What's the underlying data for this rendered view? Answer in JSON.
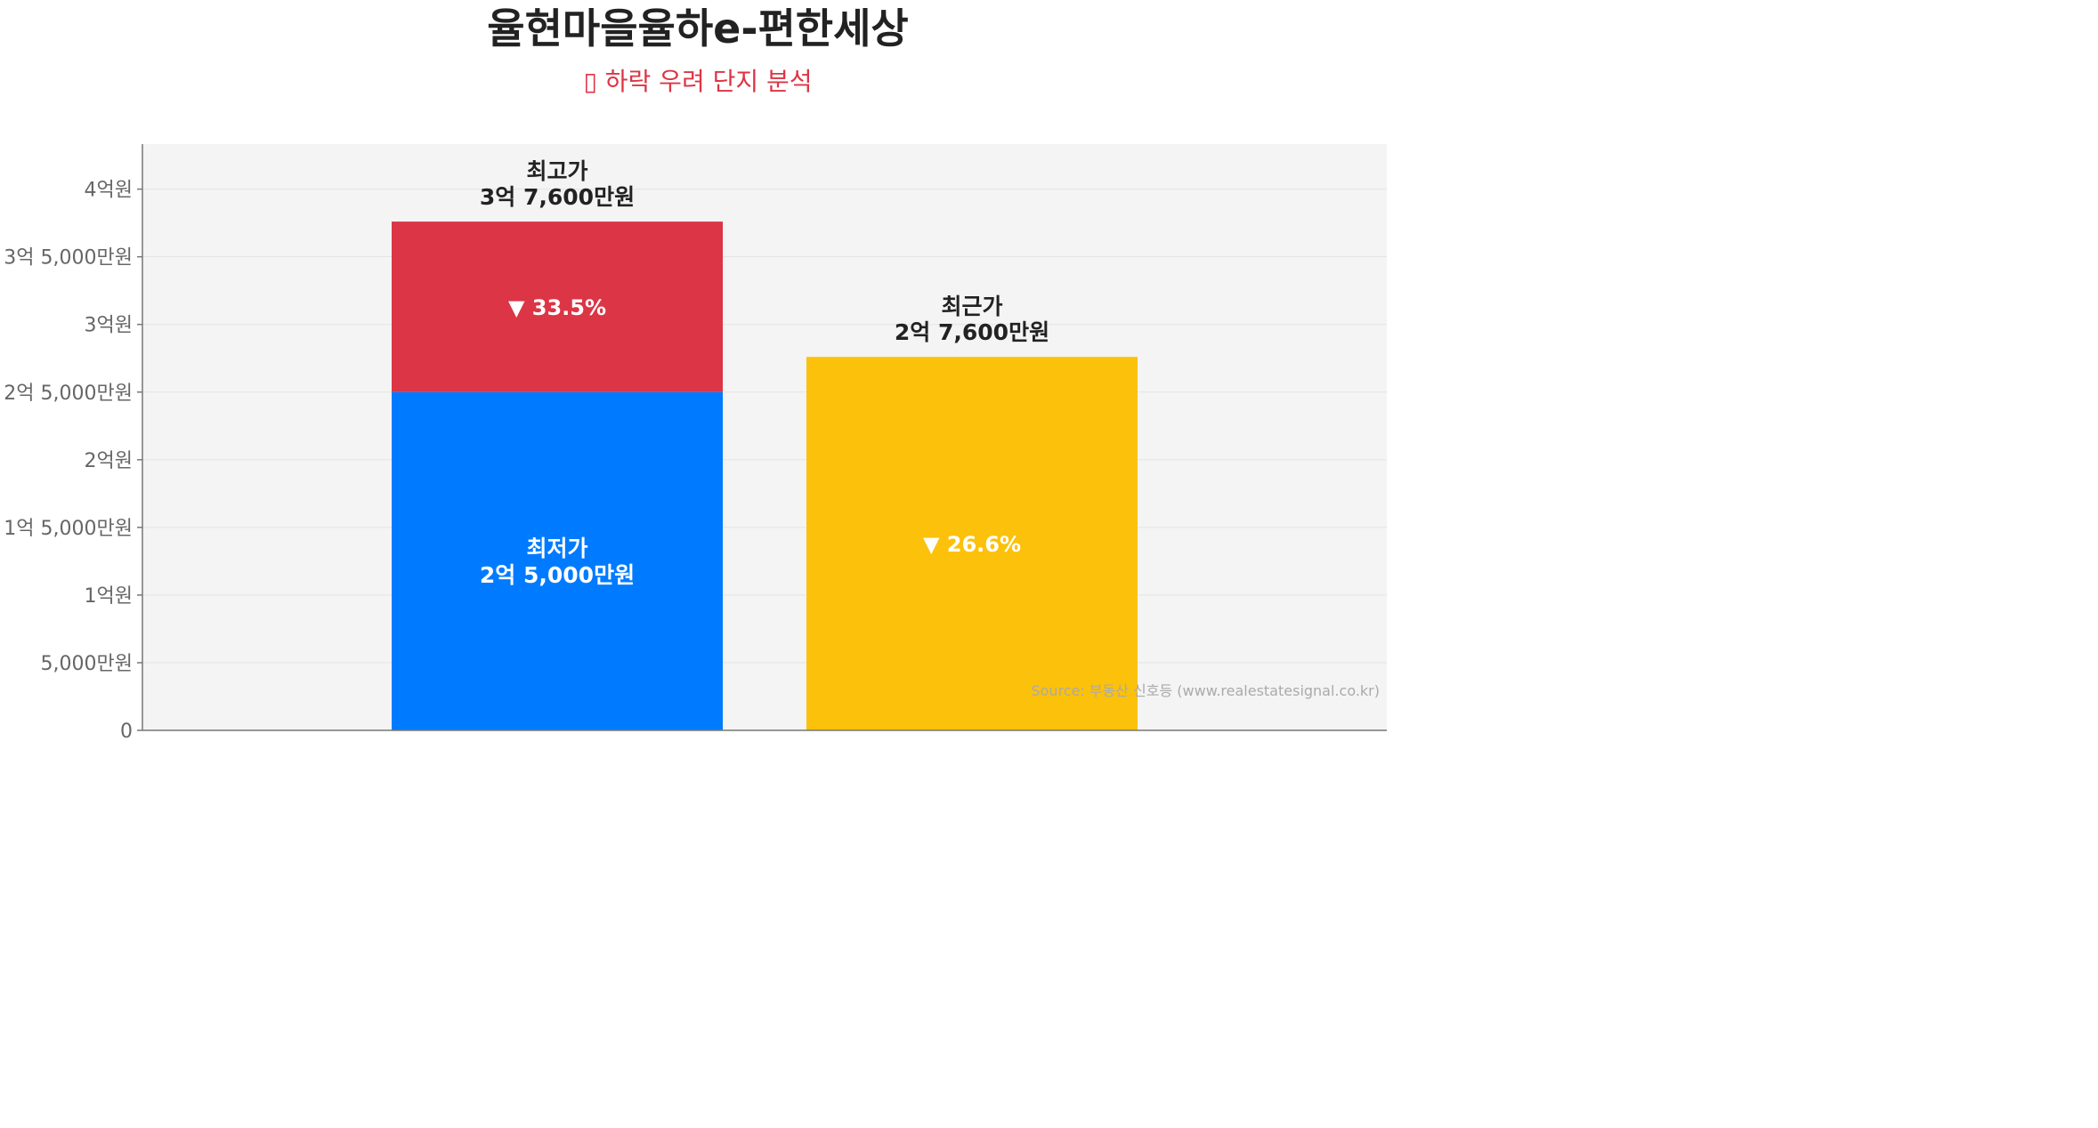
{
  "title": "율현마을율하e-편한세상",
  "subtitle": "▯ 하락 우려 단지 분석",
  "source": "Source: 부동산 신호등 (www.realestatesignal.co.kr)",
  "colors": {
    "plot_bg": "#f4f4f4",
    "high": "#dc3545",
    "low": "#007bff",
    "recent": "#fcc10a",
    "subtitle": "#dc3545"
  },
  "chart_data": {
    "type": "bar",
    "ylim": [
      0,
      43000
    ],
    "grid": true,
    "y_ticks": [
      {
        "value": 0,
        "label": "0"
      },
      {
        "value": 5000,
        "label": "5,000만원"
      },
      {
        "value": 10000,
        "label": "1억원"
      },
      {
        "value": 15000,
        "label": "1억 5,000만원"
      },
      {
        "value": 20000,
        "label": "2억원"
      },
      {
        "value": 25000,
        "label": "2억 5,000만원"
      },
      {
        "value": 30000,
        "label": "3억원"
      },
      {
        "value": 35000,
        "label": "3억 5,000만원"
      },
      {
        "value": 40000,
        "label": "4억원"
      }
    ],
    "bars": [
      {
        "id": "high-low",
        "high": 37600,
        "low": 25000,
        "high_label_line1": "최고가",
        "high_label_line2": "3억 7,600만원",
        "low_label_line1": "최저가",
        "low_label_line2": "2억 5,000만원",
        "drop_text": "▼ 33.5%"
      },
      {
        "id": "recent",
        "value": 27600,
        "label_line1": "최근가",
        "label_line2": "2억 7,600만원",
        "drop_text": "▼ 26.6%"
      }
    ]
  }
}
